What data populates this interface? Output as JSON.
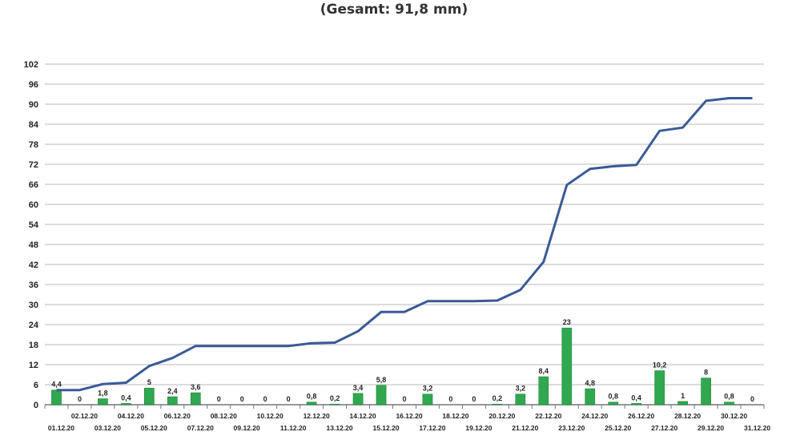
{
  "chart_data": {
    "type": "bar+line",
    "title": "(Gesamt: 91,8 mm)",
    "categories": [
      "01.12.20",
      "02.12.20",
      "03.12.20",
      "04.12.20",
      "05.12.20",
      "06.12.20",
      "07.12.20",
      "08.12.20",
      "09.12.20",
      "10.12.20",
      "11.12.20",
      "12.12.20",
      "13.12.20",
      "14.12.20",
      "15.12.20",
      "16.12.20",
      "17.12.20",
      "18.12.20",
      "19.12.20",
      "20.12.20",
      "21.12.20",
      "22.12.20",
      "23.12.20",
      "24.12.20",
      "25.12.20",
      "26.12.20",
      "27.12.20",
      "28.12.20",
      "29.12.20",
      "30.12.20",
      "31.12.20"
    ],
    "bar_series": {
      "values": [
        4.4,
        0,
        1.8,
        0.4,
        5,
        2.4,
        3.6,
        0,
        0,
        0,
        0,
        0.8,
        0.2,
        3.4,
        5.8,
        0,
        3.2,
        0,
        0,
        0.2,
        3.2,
        8.4,
        23,
        4.8,
        0.8,
        0.4,
        10.2,
        1,
        8,
        0.8,
        0
      ],
      "labels": [
        "4,4",
        "0",
        "1,8",
        "0,4",
        "5",
        "2,4",
        "3,6",
        "0",
        "0",
        "0",
        "0",
        "0,8",
        "0,2",
        "3,4",
        "5,8",
        "0",
        "3,2",
        "0",
        "0",
        "0,2",
        "3,2",
        "8,4",
        "23",
        "4,8",
        "0,8",
        "0,4",
        "10,2",
        "1",
        "8",
        "0,8",
        "0"
      ],
      "color": "#2fa84f"
    },
    "line_series": {
      "values": [
        4.4,
        4.4,
        6.2,
        6.6,
        11.6,
        14,
        17.6,
        17.6,
        17.6,
        17.6,
        17.6,
        18.4,
        18.6,
        22,
        27.8,
        27.8,
        31,
        31,
        31,
        31.2,
        34.4,
        42.8,
        65.8,
        70.6,
        71.4,
        71.8,
        82,
        83,
        91,
        91.8,
        91.8
      ],
      "color": "#3a5a96"
    },
    "y_ticks": [
      "0",
      "6",
      "12",
      "18",
      "24",
      "30",
      "36",
      "42",
      "48",
      "54",
      "60",
      "66",
      "72",
      "78",
      "84",
      "90",
      "96",
      "102"
    ],
    "ylim": [
      0,
      102
    ],
    "grid": true
  }
}
